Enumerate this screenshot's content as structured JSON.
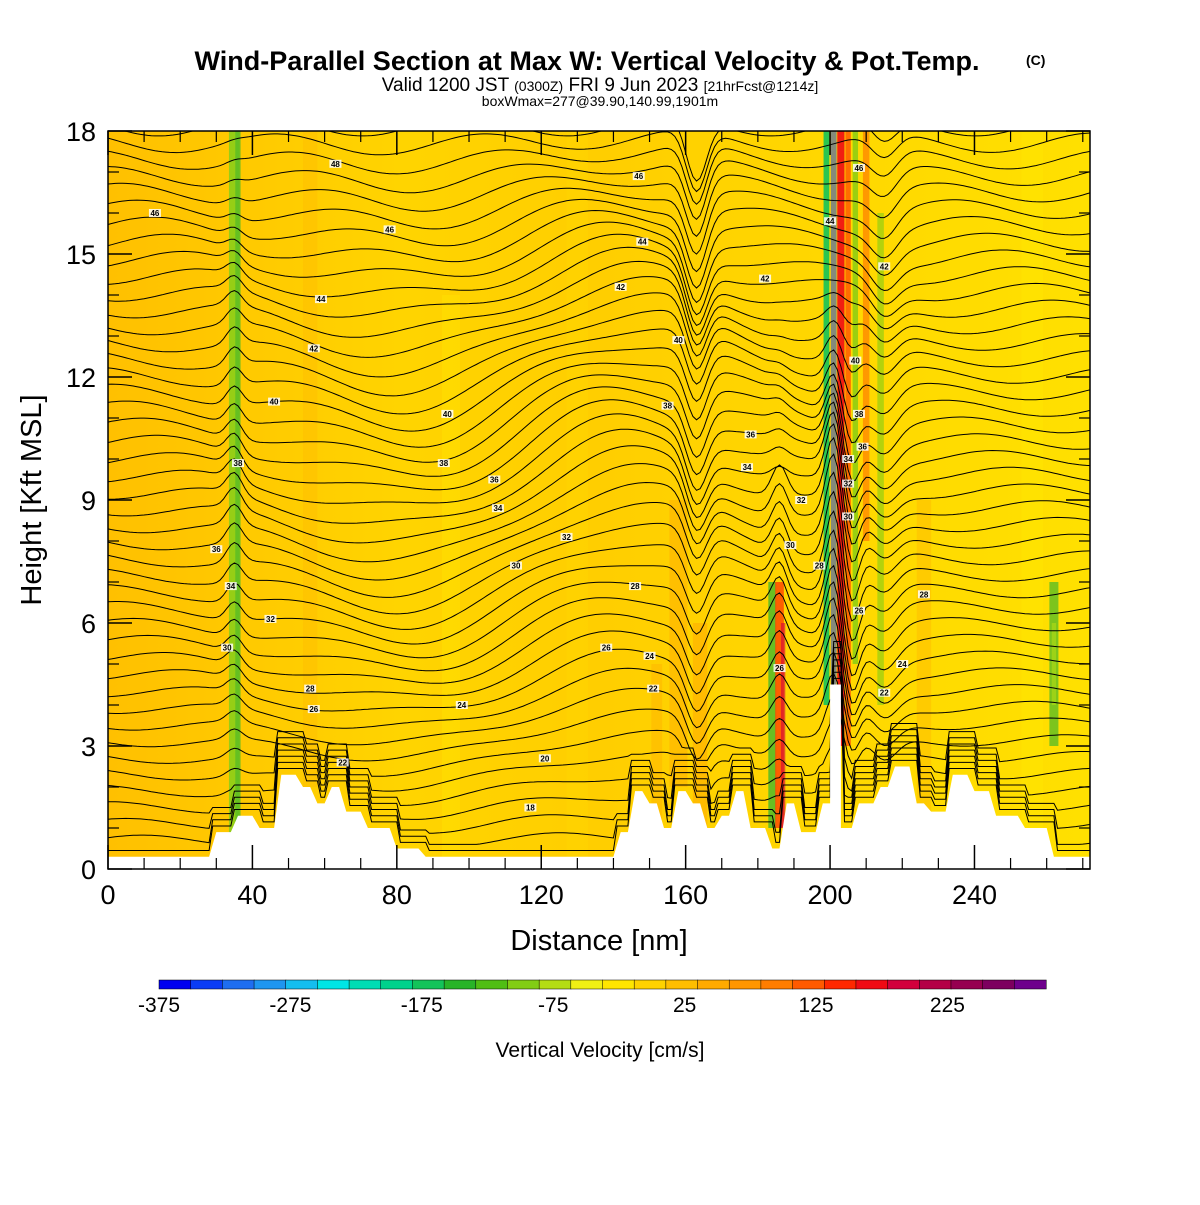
{
  "chart_data": {
    "type": "heatmap",
    "title": "Wind-Parallel Section at Max W: Vertical Velocity & Pot.Temp.",
    "title_mark": "(C)",
    "subtitle": {
      "valid": "Valid 1200 JST",
      "utc": "(0300Z)",
      "date": "FRI 9 Jun 2023",
      "forecast": "[21hrFcst@1214z]"
    },
    "subtitle2": "boxWmax=277@39.90,140.99,1901m",
    "xlabel": "Distance [nm]",
    "ylabel": "Height [Kft MSL]",
    "xlim": [
      0,
      272
    ],
    "ylim": [
      0,
      18
    ],
    "x_ticks": [
      0,
      40,
      80,
      120,
      160,
      200,
      240
    ],
    "y_ticks": [
      0,
      3,
      6,
      9,
      12,
      15,
      18
    ],
    "colorbar": {
      "label": "Vertical Velocity [cm/s]",
      "tick_labels": [
        "-375",
        "-275",
        "-175",
        "-75",
        "25",
        "125",
        "225"
      ],
      "tick_values": [
        -375,
        -275,
        -175,
        -75,
        25,
        125,
        225
      ],
      "range": [
        -375,
        300
      ],
      "colors": [
        "#0000f0",
        "#0a3cf5",
        "#1e6ef0",
        "#1e96f0",
        "#14beef",
        "#00e6e6",
        "#00dcb4",
        "#00d28c",
        "#14c35a",
        "#28b428",
        "#50be14",
        "#82cd14",
        "#b4dc14",
        "#f0f014",
        "#ffe600",
        "#ffd200",
        "#ffbe00",
        "#ffaa00",
        "#ff9600",
        "#ff7d00",
        "#ff5a00",
        "#ff2800",
        "#f00a14",
        "#d2003c",
        "#b40046",
        "#960050",
        "#7d005f",
        "#6e008c"
      ]
    },
    "theta_labels": [
      {
        "x": 13,
        "y": 16.0,
        "v": "46"
      },
      {
        "x": 63,
        "y": 17.2,
        "v": "48"
      },
      {
        "x": 78,
        "y": 15.6,
        "v": "46"
      },
      {
        "x": 147,
        "y": 16.9,
        "v": "46"
      },
      {
        "x": 148,
        "y": 15.3,
        "v": "44"
      },
      {
        "x": 59,
        "y": 13.9,
        "v": "44"
      },
      {
        "x": 142,
        "y": 14.2,
        "v": "42"
      },
      {
        "x": 182,
        "y": 14.4,
        "v": "42"
      },
      {
        "x": 57,
        "y": 12.7,
        "v": "42"
      },
      {
        "x": 158,
        "y": 12.9,
        "v": "40"
      },
      {
        "x": 46,
        "y": 11.4,
        "v": "40"
      },
      {
        "x": 94,
        "y": 11.1,
        "v": "40"
      },
      {
        "x": 155,
        "y": 11.3,
        "v": "38"
      },
      {
        "x": 36,
        "y": 9.9,
        "v": "38"
      },
      {
        "x": 93,
        "y": 9.9,
        "v": "38"
      },
      {
        "x": 178,
        "y": 10.6,
        "v": "36"
      },
      {
        "x": 107,
        "y": 9.5,
        "v": "36"
      },
      {
        "x": 177,
        "y": 9.8,
        "v": "34"
      },
      {
        "x": 108,
        "y": 8.8,
        "v": "34"
      },
      {
        "x": 192,
        "y": 9.0,
        "v": "32"
      },
      {
        "x": 127,
        "y": 8.1,
        "v": "32"
      },
      {
        "x": 30,
        "y": 7.8,
        "v": "36"
      },
      {
        "x": 113,
        "y": 7.4,
        "v": "30"
      },
      {
        "x": 189,
        "y": 7.9,
        "v": "30"
      },
      {
        "x": 146,
        "y": 6.9,
        "v": "28"
      },
      {
        "x": 197,
        "y": 7.4,
        "v": "28"
      },
      {
        "x": 34,
        "y": 6.9,
        "v": "34"
      },
      {
        "x": 45,
        "y": 6.1,
        "v": "32"
      },
      {
        "x": 33,
        "y": 5.4,
        "v": "30"
      },
      {
        "x": 138,
        "y": 5.4,
        "v": "26"
      },
      {
        "x": 150,
        "y": 5.2,
        "v": "24"
      },
      {
        "x": 56,
        "y": 4.4,
        "v": "28"
      },
      {
        "x": 57,
        "y": 3.9,
        "v": "26"
      },
      {
        "x": 98,
        "y": 4.0,
        "v": "24"
      },
      {
        "x": 151,
        "y": 4.4,
        "v": "22"
      },
      {
        "x": 65,
        "y": 2.6,
        "v": "22"
      },
      {
        "x": 121,
        "y": 2.7,
        "v": "20"
      },
      {
        "x": 117,
        "y": 1.5,
        "v": "18"
      },
      {
        "x": 186,
        "y": 4.9,
        "v": "26"
      },
      {
        "x": 226,
        "y": 6.7,
        "v": "28"
      },
      {
        "x": 220,
        "y": 5.0,
        "v": "24"
      },
      {
        "x": 215,
        "y": 4.3,
        "v": "22"
      },
      {
        "x": 208,
        "y": 6.3,
        "v": "26"
      },
      {
        "x": 205,
        "y": 8.6,
        "v": "30"
      },
      {
        "x": 205,
        "y": 9.4,
        "v": "32"
      },
      {
        "x": 205,
        "y": 10.0,
        "v": "34"
      },
      {
        "x": 209,
        "y": 10.3,
        "v": "36"
      },
      {
        "x": 208,
        "y": 11.1,
        "v": "38"
      },
      {
        "x": 207,
        "y": 12.4,
        "v": "40"
      },
      {
        "x": 215,
        "y": 14.7,
        "v": "42"
      },
      {
        "x": 200,
        "y": 15.8,
        "v": "44"
      },
      {
        "x": 208,
        "y": 17.1,
        "v": "46"
      }
    ]
  }
}
